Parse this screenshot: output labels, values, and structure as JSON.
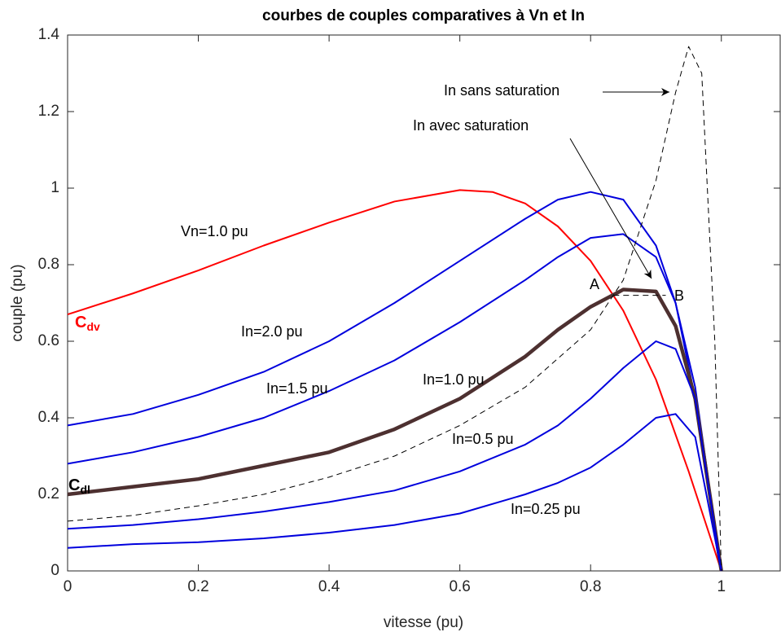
{
  "chart_data": {
    "type": "line",
    "title": "courbes de couples comparatives à Vn et In",
    "x_label": "vitesse (pu)",
    "y_label": "couple (pu)",
    "xlim": [
      0,
      1.09
    ],
    "ylim": [
      0,
      1.4
    ],
    "xticks": [
      0,
      0.2,
      0.4,
      0.6,
      0.8,
      1
    ],
    "yticks": [
      0,
      0.2,
      0.4,
      0.6,
      0.8,
      1,
      1.2,
      1.4
    ],
    "grid": false,
    "series": [
      {
        "name": "Vn=1.0 pu",
        "color": "#ff0000",
        "width": 2,
        "dash": false,
        "x": [
          0,
          0.1,
          0.2,
          0.3,
          0.4,
          0.5,
          0.6,
          0.65,
          0.7,
          0.75,
          0.8,
          0.85,
          0.9,
          0.95,
          1.0
        ],
        "values": [
          0.67,
          0.725,
          0.785,
          0.85,
          0.91,
          0.965,
          0.995,
          0.99,
          0.96,
          0.9,
          0.81,
          0.68,
          0.5,
          0.26,
          0
        ]
      },
      {
        "name": "In=2.0 pu",
        "color": "#0000dd",
        "width": 2,
        "dash": false,
        "x": [
          0,
          0.1,
          0.2,
          0.3,
          0.4,
          0.5,
          0.6,
          0.7,
          0.75,
          0.8,
          0.85,
          0.9,
          0.93,
          0.96,
          1.0
        ],
        "values": [
          0.38,
          0.41,
          0.46,
          0.52,
          0.6,
          0.7,
          0.81,
          0.92,
          0.97,
          0.99,
          0.97,
          0.85,
          0.7,
          0.45,
          0
        ]
      },
      {
        "name": "In=1.5 pu",
        "color": "#0000dd",
        "width": 2,
        "dash": false,
        "x": [
          0,
          0.1,
          0.2,
          0.3,
          0.4,
          0.5,
          0.6,
          0.7,
          0.75,
          0.8,
          0.85,
          0.9,
          0.93,
          0.96,
          1.0
        ],
        "values": [
          0.28,
          0.31,
          0.35,
          0.4,
          0.47,
          0.55,
          0.65,
          0.76,
          0.82,
          0.87,
          0.88,
          0.82,
          0.7,
          0.48,
          0
        ]
      },
      {
        "name": "In=1.0 pu",
        "color": "#4d3030",
        "width": 4.5,
        "dash": false,
        "x": [
          0,
          0.1,
          0.2,
          0.3,
          0.4,
          0.5,
          0.6,
          0.7,
          0.75,
          0.8,
          0.85,
          0.9,
          0.93,
          0.96,
          1.0
        ],
        "values": [
          0.2,
          0.22,
          0.24,
          0.275,
          0.31,
          0.37,
          0.45,
          0.56,
          0.63,
          0.69,
          0.735,
          0.73,
          0.64,
          0.45,
          0
        ]
      },
      {
        "name": "In=0.5 pu",
        "color": "#0000dd",
        "width": 2,
        "dash": false,
        "x": [
          0,
          0.1,
          0.2,
          0.3,
          0.4,
          0.5,
          0.6,
          0.7,
          0.75,
          0.8,
          0.85,
          0.9,
          0.93,
          0.96,
          1.0
        ],
        "values": [
          0.11,
          0.12,
          0.135,
          0.155,
          0.18,
          0.21,
          0.26,
          0.33,
          0.38,
          0.45,
          0.53,
          0.6,
          0.58,
          0.45,
          0
        ]
      },
      {
        "name": "In=0.25 pu",
        "color": "#0000dd",
        "width": 2,
        "dash": false,
        "x": [
          0,
          0.1,
          0.2,
          0.3,
          0.4,
          0.5,
          0.6,
          0.7,
          0.75,
          0.8,
          0.85,
          0.9,
          0.93,
          0.96,
          1.0
        ],
        "values": [
          0.06,
          0.07,
          0.075,
          0.085,
          0.1,
          0.12,
          0.15,
          0.2,
          0.23,
          0.27,
          0.33,
          0.4,
          0.41,
          0.35,
          0
        ]
      },
      {
        "color": "#000000",
        "width": 1,
        "dash": true,
        "x": [
          0,
          0.1,
          0.2,
          0.3,
          0.4,
          0.5,
          0.6,
          0.7,
          0.8,
          0.85,
          0.9,
          0.93,
          0.95,
          0.97,
          0.99,
          1.0
        ],
        "values": [
          0.13,
          0.145,
          0.17,
          0.2,
          0.245,
          0.3,
          0.38,
          0.48,
          0.63,
          0.76,
          1.02,
          1.25,
          1.37,
          1.3,
          0.6,
          0
        ]
      },
      {
        "color": "#000000",
        "width": 1,
        "dash": true,
        "x": [
          0.835,
          0.915
        ],
        "values": [
          0.72,
          0.72
        ]
      }
    ],
    "annotations": [
      {
        "text": "In sans saturation"
      },
      {
        "text": "In avec saturation"
      },
      {
        "text": "A"
      },
      {
        "text": "B"
      },
      {
        "main": "C",
        "sub": "dv",
        "color": "#ff0000"
      },
      {
        "main": "C",
        "sub": "dl",
        "color": "#000000"
      }
    ]
  }
}
